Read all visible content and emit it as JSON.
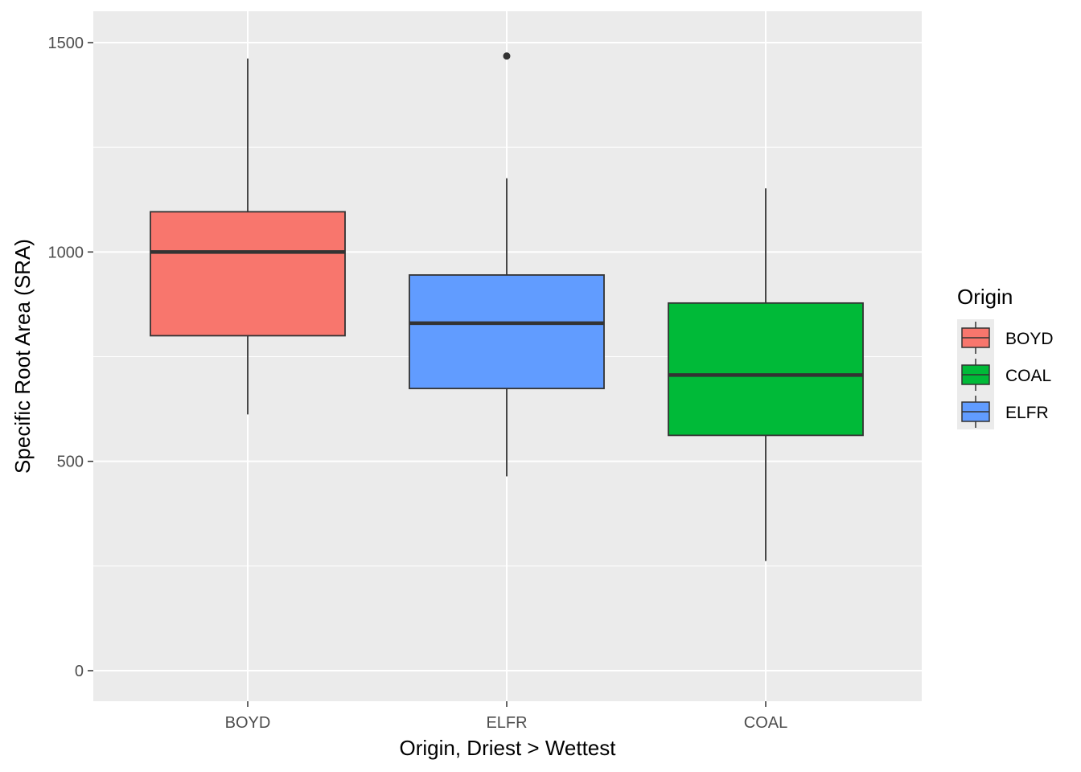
{
  "chart_data": {
    "type": "boxplot",
    "title": "",
    "xlabel": "Origin, Driest > Wettest",
    "ylabel": "Specific Root Area (SRA)",
    "ylim": [
      -75,
      1580
    ],
    "yticks": [
      0,
      500,
      1000,
      1500
    ],
    "grid": true,
    "categories": [
      "BOYD",
      "ELFR",
      "COAL"
    ],
    "boxes": [
      {
        "category": "BOYD",
        "fill": "#F8766D",
        "whisker_low": 612,
        "q1": 800,
        "median": 1000,
        "q3": 1096,
        "whisker_high": 1462,
        "outliers": []
      },
      {
        "category": "ELFR",
        "fill": "#619CFF",
        "whisker_low": 464,
        "q1": 674,
        "median": 830,
        "q3": 945,
        "whisker_high": 1176,
        "outliers": [
          1468
        ]
      },
      {
        "category": "COAL",
        "fill": "#00BA38",
        "whisker_low": 262,
        "q1": 562,
        "median": 706,
        "q3": 878,
        "whisker_high": 1152,
        "outliers": []
      }
    ],
    "legend": {
      "title": "Origin",
      "position": "right",
      "items": [
        {
          "label": "BOYD",
          "color": "#F8766D"
        },
        {
          "label": "COAL",
          "color": "#00BA38"
        },
        {
          "label": "ELFR",
          "color": "#619CFF"
        }
      ]
    },
    "colors": {
      "panel_background": "#EBEBEB",
      "grid": "#FFFFFF",
      "box_outline": "#333333"
    }
  }
}
